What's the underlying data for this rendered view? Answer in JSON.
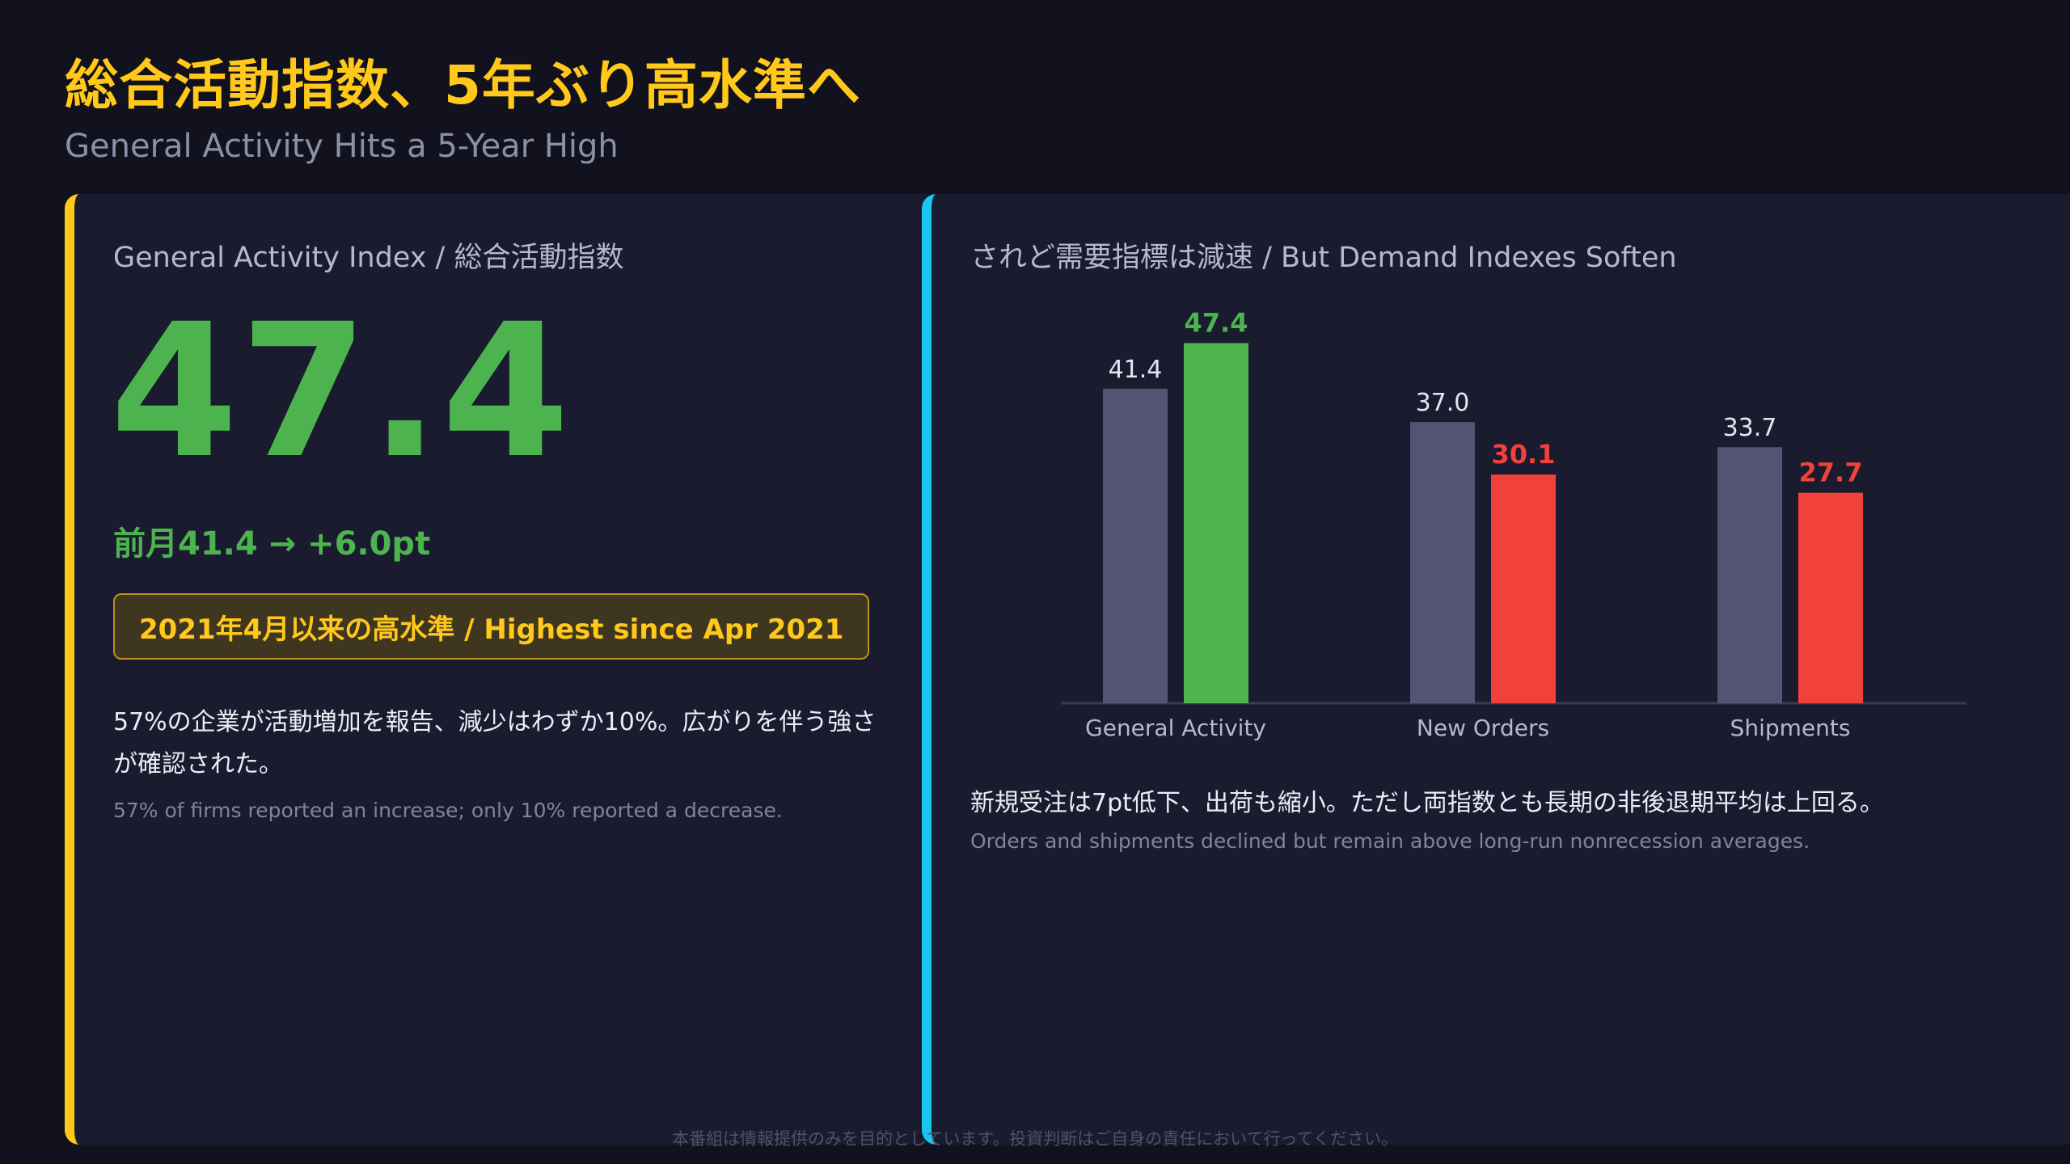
{
  "header": {
    "title": "総合活動指数、5年ぶり高水準へ",
    "subtitle": "General Activity Hits a 5-Year High"
  },
  "left_panel": {
    "title": "General Activity Index / 総合活動指数",
    "value": "47.4",
    "delta": "前月41.4 → +6.0pt",
    "badge": "2021年4月以来の高水準 / Highest since Apr 2021",
    "body_jp": "57%の企業が活動増加を報告、減少はわずか10%。広がりを伴う強さが確認された。",
    "body_en": "57% of firms reported an increase; only 10% reported a decrease."
  },
  "right_panel": {
    "title": "されど需要指標は減速 / But Demand Indexes Soften",
    "body_jp": "新規受注は7pt低下、出荷も縮小。ただし両指数とも長期の非後退期平均は上回る。",
    "body_en": "Orders and shipments declined but remain above long-run nonrecession averages."
  },
  "chart_data": {
    "type": "bar",
    "categories": [
      "General Activity",
      "New Orders",
      "Shipments"
    ],
    "series": [
      {
        "values": [
          41.4,
          37.0,
          33.7
        ],
        "color": "#555373"
      },
      {
        "values": [
          47.4,
          30.1,
          27.7
        ],
        "colors": [
          "#4cb34f",
          "#f0413a",
          "#f0413a"
        ]
      }
    ],
    "data_labels": [
      [
        "41.4",
        "37.0",
        "33.7"
      ],
      [
        "47.4",
        "30.1",
        "27.7"
      ]
    ],
    "ylim": [
      0,
      50
    ],
    "grid": false,
    "legend": "none"
  },
  "colors": {
    "accent_yellow": "#ffc81a",
    "accent_cyan": "#19c6ef",
    "positive": "#4cb34f",
    "negative": "#f0413a",
    "prior": "#555373"
  },
  "footer": {
    "disclaimer": "本番組は情報提供のみを目的としています。投資判断はご自身の責任において行ってください。"
  }
}
